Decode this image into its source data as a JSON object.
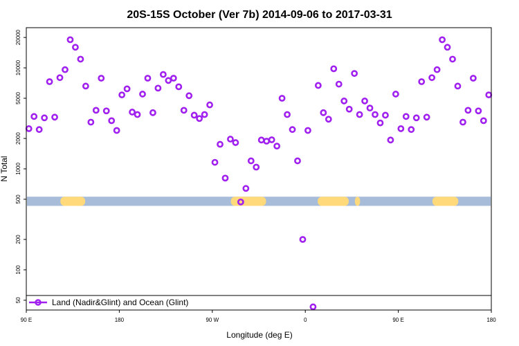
{
  "chart_data": {
    "type": "scatter",
    "title": "20S-15S October (Ver 7b)   2014-09-06 to 2017-03-31",
    "xlabel": "Longitude (deg E)",
    "ylabel": "N Total",
    "x_ticks": [
      "90 E",
      "180",
      "90 W",
      "0",
      "90 E",
      "180"
    ],
    "y_ticks": [
      "50",
      "100",
      "200",
      "500",
      "1000",
      "2000",
      "5000",
      "10000",
      "20000"
    ],
    "y_scale": "log",
    "ylim": [
      40,
      25000
    ],
    "xlim": [
      0,
      450
    ],
    "grid": false,
    "legend_position": "bottom-left",
    "colors": {
      "series": "#a020f0",
      "band_ocean": "#a7bcd9",
      "band_land": "#ffd97a"
    },
    "series": [
      {
        "name": "Land (Nadir&Glint) and Ocean (Glint)",
        "x": [
          2.5,
          7.5,
          12.5,
          17.5,
          22.5,
          27.5,
          32.5,
          37.5,
          42.5,
          47.5,
          52.5,
          57.5,
          62.5,
          67.5,
          72.5,
          77.5,
          82.5,
          87.5,
          92.5,
          97.5,
          102.5,
          107.5,
          112.5,
          117.5,
          122.5,
          127.5,
          132.5,
          137.5,
          142.5,
          147.5,
          152.5,
          157.5,
          162.5,
          167.5,
          172.5,
          177.5,
          182.5,
          187.5,
          192.5,
          197.5,
          202.5,
          207.5,
          212.5,
          217.5,
          222.5,
          227.5,
          232.5,
          237.5,
          242.5,
          247.5,
          252.5,
          257.5,
          262.5,
          267.5,
          272.5,
          277.5,
          282.5,
          287.5,
          292.5,
          297.5,
          302.5,
          307.5,
          312.5,
          317.5,
          322.5,
          327.5,
          332.5,
          337.5,
          342.5,
          347.5,
          352.5,
          357.5,
          362.5,
          367.5,
          372.5,
          377.5,
          382.5,
          387.5,
          392.5,
          397.5,
          402.5,
          407.5,
          412.5,
          417.5,
          422.5,
          427.5,
          432.5,
          437.5,
          442.5,
          447.5
        ],
        "values": [
          2500,
          3300,
          2450,
          3200,
          7300,
          3250,
          8000,
          9600,
          19000,
          16000,
          12200,
          6600,
          2900,
          3800,
          7900,
          3750,
          3000,
          2400,
          5400,
          6200,
          3650,
          3450,
          5500,
          7900,
          3600,
          6300,
          8600,
          7500,
          7900,
          6500,
          3800,
          5300,
          3400,
          3150,
          3450,
          4300,
          1160,
          1750,
          810,
          1970,
          1820,
          470,
          640,
          1200,
          1040,
          1930,
          1880,
          1940,
          1680,
          5000,
          3450,
          2450,
          1200,
          200,
          2400,
          43,
          6700,
          3600,
          3100,
          9800,
          6900,
          4700,
          3900,
          8800,
          3450,
          4700,
          4000,
          3450,
          2850,
          3400,
          1930,
          5500,
          2500,
          3300,
          2450,
          3200,
          7300,
          3250,
          8000,
          9600,
          19000,
          16000,
          12200,
          6600,
          2900,
          3800,
          7900,
          3750,
          3000,
          5400
        ]
      }
    ],
    "band": {
      "value_min": 430,
      "value_max": 530,
      "land_ranges": [
        [
          33,
          57
        ],
        [
          198,
          232
        ],
        [
          282,
          312
        ],
        [
          318,
          323
        ],
        [
          393,
          418
        ]
      ]
    }
  }
}
